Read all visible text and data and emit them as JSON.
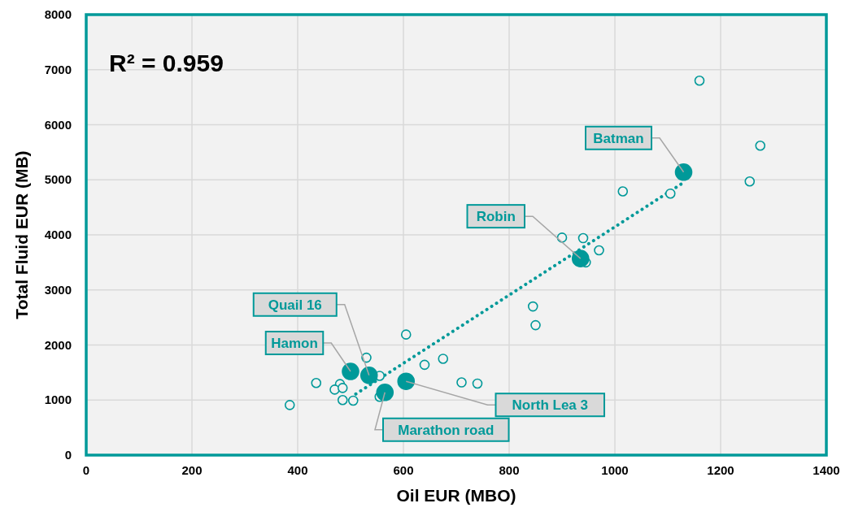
{
  "chart_data": {
    "type": "scatter",
    "xlabel": "Oil EUR (MBO)",
    "ylabel": "Total Fluid EUR (MB)",
    "xlim": [
      0,
      1400
    ],
    "xticks": [
      0,
      200,
      400,
      600,
      800,
      1000,
      1200,
      1400
    ],
    "ylim": [
      0,
      8000
    ],
    "yticks": [
      0,
      1000,
      2000,
      3000,
      4000,
      5000,
      6000,
      7000,
      8000
    ],
    "grid": true,
    "series": [
      {
        "color": "#009999",
        "marker": "circle",
        "x": [
          385,
          435,
          480,
          470,
          485,
          485,
          505,
          530,
          555,
          555,
          605,
          640,
          675,
          710,
          740,
          900,
          940,
          970,
          945,
          845,
          850,
          1160,
          1275,
          1255,
          1015,
          1105
        ],
        "values": [
          910,
          1310,
          1290,
          1190,
          1220,
          1000,
          990,
          1770,
          1440,
          1060,
          2190,
          1640,
          1750,
          1320,
          1300,
          3950,
          3940,
          3720,
          3500,
          2700,
          2360,
          6800,
          5620,
          4970,
          4790,
          4750
        ]
      },
      {
        "color": "#009999",
        "marker": "circle",
        "x": [
          500,
          535,
          565,
          605,
          935,
          1130
        ],
        "values": [
          1520,
          1450,
          1140,
          1340,
          3570,
          5140
        ]
      },
      {
        "type": "line",
        "color": "#009999",
        "line_style": "dotted",
        "x": [
          510,
          1125
        ],
        "values": [
          1110,
          4920
        ]
      }
    ],
    "annotations": [
      "R² = 0.959",
      {
        "text": "Hamon",
        "x": 500,
        "y": 1520
      },
      {
        "text": "Quail 16",
        "x": 535,
        "y": 1450
      },
      {
        "text": "Marathon road",
        "x": 565,
        "y": 1140
      },
      {
        "text": "North Lea 3",
        "x": 605,
        "y": 1340
      },
      {
        "text": "Robin",
        "x": 935,
        "y": 3570
      },
      {
        "text": "Batman",
        "x": 1130,
        "y": 5140
      }
    ]
  }
}
